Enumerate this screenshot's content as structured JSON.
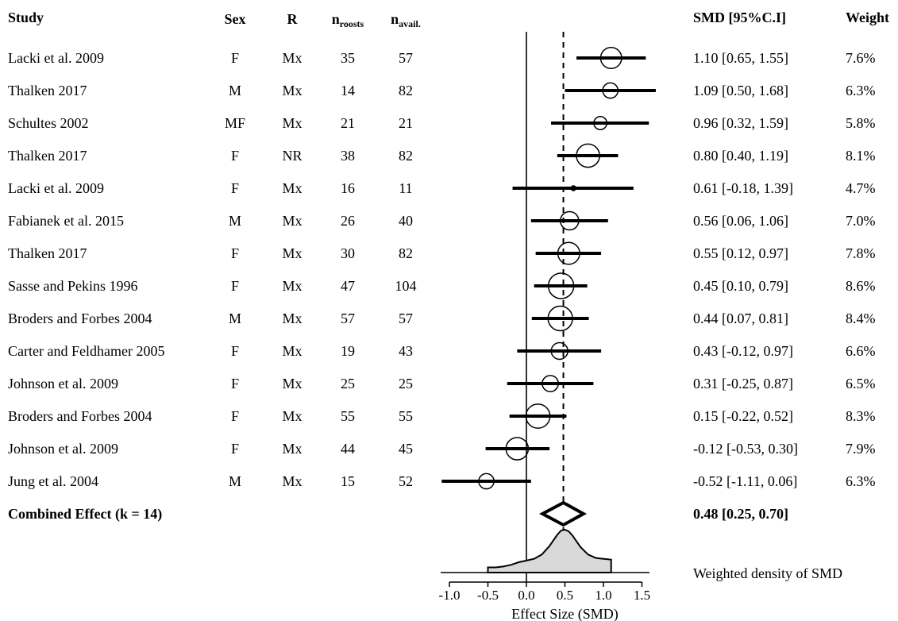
{
  "headers": {
    "study": "Study",
    "sex": "Sex",
    "r": "R",
    "n_roosts_main": "n",
    "n_roosts_sub": "roosts",
    "n_avail_main": "n",
    "n_avail_sub": "avail.",
    "smd": "SMD [95%C.I]",
    "weight": "Weight"
  },
  "chart_data": {
    "type": "forest",
    "x_axis": {
      "label": "Effect Size (SMD)",
      "ticks": [
        -1.0,
        -0.5,
        0.0,
        0.5,
        1.0,
        1.5
      ],
      "tick_labels": [
        "-1.0",
        "-0.5",
        "0.0",
        "0.5",
        "1.0",
        "1.5"
      ],
      "range": [
        -1.1,
        1.7
      ]
    },
    "reference_line": 0.0,
    "combined_line": 0.48,
    "studies": [
      {
        "study": "Lacki et al. 2009",
        "sex": "F",
        "r": "Mx",
        "n_roosts": "35",
        "n_avail": "57",
        "smd": 1.1,
        "lo": 0.65,
        "hi": 1.55,
        "ci_text": "1.10 [0.65, 1.55]",
        "weight": 7.6,
        "weight_text": "7.6%"
      },
      {
        "study": "Thalken 2017",
        "sex": "M",
        "r": "Mx",
        "n_roosts": "14",
        "n_avail": "82",
        "smd": 1.09,
        "lo": 0.5,
        "hi": 1.68,
        "ci_text": "1.09 [0.50, 1.68]",
        "weight": 6.3,
        "weight_text": "6.3%"
      },
      {
        "study": "Schultes 2002",
        "sex": "MF",
        "r": "Mx",
        "n_roosts": "21",
        "n_avail": "21",
        "smd": 0.96,
        "lo": 0.32,
        "hi": 1.59,
        "ci_text": "0.96 [0.32, 1.59]",
        "weight": 5.8,
        "weight_text": "5.8%"
      },
      {
        "study": "Thalken 2017",
        "sex": "F",
        "r": "NR",
        "n_roosts": "38",
        "n_avail": "82",
        "smd": 0.8,
        "lo": 0.4,
        "hi": 1.19,
        "ci_text": "0.80 [0.40, 1.19]",
        "weight": 8.1,
        "weight_text": "8.1%"
      },
      {
        "study": "Lacki et al. 2009",
        "sex": "F",
        "r": "Mx",
        "n_roosts": "16",
        "n_avail": "11",
        "smd": 0.61,
        "lo": -0.18,
        "hi": 1.39,
        "ci_text": "0.61 [-0.18, 1.39]",
        "weight": 4.7,
        "weight_text": "4.7%"
      },
      {
        "study": "Fabianek et al. 2015",
        "sex": "M",
        "r": "Mx",
        "n_roosts": "26",
        "n_avail": "40",
        "smd": 0.56,
        "lo": 0.06,
        "hi": 1.06,
        "ci_text": "0.56 [0.06, 1.06]",
        "weight": 7.0,
        "weight_text": "7.0%"
      },
      {
        "study": "Thalken 2017",
        "sex": "F",
        "r": "Mx",
        "n_roosts": "30",
        "n_avail": "82",
        "smd": 0.55,
        "lo": 0.12,
        "hi": 0.97,
        "ci_text": "0.55 [0.12, 0.97]",
        "weight": 7.8,
        "weight_text": "7.8%"
      },
      {
        "study": "Sasse and Pekins 1996",
        "sex": "F",
        "r": "Mx",
        "n_roosts": "47",
        "n_avail": "104",
        "smd": 0.45,
        "lo": 0.1,
        "hi": 0.79,
        "ci_text": "0.45 [0.10, 0.79]",
        "weight": 8.6,
        "weight_text": "8.6%"
      },
      {
        "study": "Broders and Forbes 2004",
        "sex": "M",
        "r": "Mx",
        "n_roosts": "57",
        "n_avail": "57",
        "smd": 0.44,
        "lo": 0.07,
        "hi": 0.81,
        "ci_text": "0.44 [0.07, 0.81]",
        "weight": 8.4,
        "weight_text": "8.4%"
      },
      {
        "study": "Carter and Feldhamer 2005",
        "sex": "F",
        "r": "Mx",
        "n_roosts": "19",
        "n_avail": "43",
        "smd": 0.43,
        "lo": -0.12,
        "hi": 0.97,
        "ci_text": "0.43 [-0.12, 0.97]",
        "weight": 6.6,
        "weight_text": "6.6%"
      },
      {
        "study": "Johnson et al. 2009",
        "sex": "F",
        "r": "Mx",
        "n_roosts": "25",
        "n_avail": "25",
        "smd": 0.31,
        "lo": -0.25,
        "hi": 0.87,
        "ci_text": "0.31 [-0.25, 0.87]",
        "weight": 6.5,
        "weight_text": "6.5%"
      },
      {
        "study": "Broders and Forbes 2004",
        "sex": "F",
        "r": "Mx",
        "n_roosts": "55",
        "n_avail": "55",
        "smd": 0.15,
        "lo": -0.22,
        "hi": 0.52,
        "ci_text": "0.15 [-0.22, 0.52]",
        "weight": 8.3,
        "weight_text": "8.3%"
      },
      {
        "study": "Johnson et al. 2009",
        "sex": "F",
        "r": "Mx",
        "n_roosts": "44",
        "n_avail": "45",
        "smd": -0.12,
        "lo": -0.53,
        "hi": 0.3,
        "ci_text": "-0.12 [-0.53, 0.30]",
        "weight": 7.9,
        "weight_text": "7.9%"
      },
      {
        "study": "Jung et al. 2004",
        "sex": "M",
        "r": "Mx",
        "n_roosts": "15",
        "n_avail": "52",
        "smd": -0.52,
        "lo": -1.11,
        "hi": 0.06,
        "ci_text": "-0.52 [-1.11, 0.06]",
        "weight": 6.3,
        "weight_text": "6.3%"
      }
    ],
    "combined": {
      "label": "Combined Effect (k = 14)",
      "smd": 0.48,
      "lo": 0.25,
      "hi": 0.7,
      "ci_text": "0.48 [0.25, 0.70]"
    },
    "density": {
      "label": "Weighted density of SMD",
      "x": [
        -0.5,
        -0.4,
        -0.3,
        -0.2,
        -0.1,
        0.0,
        0.1,
        0.2,
        0.3,
        0.4,
        0.45,
        0.5,
        0.55,
        0.6,
        0.7,
        0.8,
        0.9,
        1.0,
        1.1
      ],
      "y": [
        0.12,
        0.12,
        0.14,
        0.18,
        0.24,
        0.28,
        0.32,
        0.42,
        0.62,
        0.88,
        0.98,
        1.0,
        0.96,
        0.86,
        0.6,
        0.42,
        0.34,
        0.32,
        0.3
      ]
    }
  }
}
